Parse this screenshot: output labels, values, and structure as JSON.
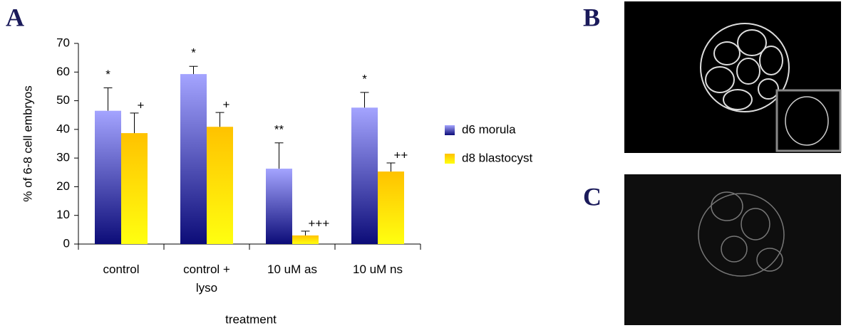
{
  "chart_data": {
    "type": "bar",
    "panel": "A",
    "y_label": "% of 6-8 cell embryos",
    "x_label": "treatment",
    "categories": [
      "control",
      "control + lyso",
      "10 uM as",
      "10 uM ns"
    ],
    "series": [
      {
        "name": "d6 morula",
        "gradient": [
          "#a4a4ff",
          "#0c0c78"
        ],
        "values": [
          46.5,
          59.3,
          26.3,
          47.6
        ],
        "errors": [
          8,
          2.7,
          9,
          5.3
        ],
        "annotations": [
          "*",
          "*",
          "**",
          "*"
        ]
      },
      {
        "name": "d8 blastocyst",
        "gradient": [
          "#ffc200",
          "#ffff10"
        ],
        "values": [
          38.7,
          40.9,
          3,
          25.3
        ],
        "errors": [
          7,
          5,
          1.5,
          3
        ],
        "annotations": [
          "+",
          "+",
          "+++",
          "++"
        ]
      }
    ],
    "ylim": [
      0,
      70
    ],
    "yticks": [
      0,
      10,
      20,
      30,
      40,
      50,
      60,
      70
    ]
  },
  "panels": {
    "b": "B",
    "c": "C"
  }
}
